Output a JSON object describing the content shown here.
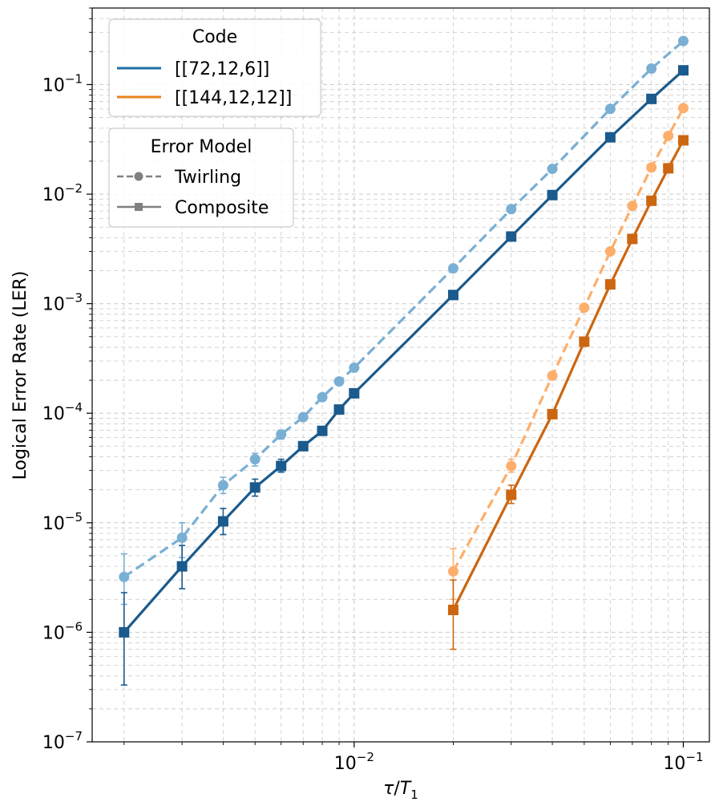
{
  "chart_data": {
    "type": "line",
    "xscale": "log",
    "yscale": "log",
    "xlim": [
      0.0016,
      0.12
    ],
    "ylim": [
      1e-07,
      0.5
    ],
    "xlabel": "τ/T₁",
    "ylabel": "Logical Error Rate (LER)",
    "grid": true,
    "x_ticks": [
      {
        "value": 0.01,
        "base": "10",
        "exp": "−2"
      },
      {
        "value": 0.1,
        "base": "10",
        "exp": "−1"
      }
    ],
    "y_ticks": [
      {
        "value": 1e-07,
        "base": "10",
        "exp": "−7"
      },
      {
        "value": 1e-06,
        "base": "10",
        "exp": "−6"
      },
      {
        "value": 1e-05,
        "base": "10",
        "exp": "−5"
      },
      {
        "value": 0.0001,
        "base": "10",
        "exp": "−4"
      },
      {
        "value": 0.001,
        "base": "10",
        "exp": "−3"
      },
      {
        "value": 0.01,
        "base": "10",
        "exp": "−2"
      },
      {
        "value": 0.1,
        "base": "10",
        "exp": "−1"
      }
    ],
    "legend_code": {
      "title": "Code",
      "entries": [
        {
          "label": "[[72,12,6]]",
          "color": "#1f6fa8"
        },
        {
          "label": "[[144,12,12]]",
          "color": "#e8821e"
        }
      ]
    },
    "legend_model": {
      "title": "Error Model",
      "entries": [
        {
          "label": "Twirling",
          "style": "dashed",
          "marker": "circle",
          "color": "#808080"
        },
        {
          "label": "Composite",
          "style": "solid",
          "marker": "square",
          "color": "#808080"
        }
      ]
    },
    "series": [
      {
        "name": "[[72,12,6]] Twirling",
        "color": "#7aafd4",
        "style": "dashed",
        "marker": "circle",
        "x": [
          0.002,
          0.003,
          0.004,
          0.005,
          0.006,
          0.007,
          0.008,
          0.009,
          0.01,
          0.02,
          0.03,
          0.04,
          0.06,
          0.08,
          0.1
        ],
        "y": [
          3.2e-06,
          7.3e-06,
          2.2e-05,
          3.8e-05,
          6.4e-05,
          9.2e-05,
          0.00014,
          0.000195,
          0.00026,
          0.0021,
          0.0073,
          0.017,
          0.06,
          0.14,
          0.25
        ],
        "err_low": [
          1.8e-06,
          4.8e-06,
          1.85e-05,
          3.3e-05,
          5.8e-05,
          8.6e-05,
          0.000134,
          0.00019,
          0.000255,
          0.00208,
          0.00725,
          0.0169,
          0.0598,
          0.139,
          0.249
        ],
        "err_high": [
          5.2e-06,
          1e-05,
          2.6e-05,
          4.3e-05,
          7e-05,
          9.8e-05,
          0.000146,
          0.0002,
          0.000265,
          0.00212,
          0.00735,
          0.0171,
          0.0602,
          0.141,
          0.251
        ]
      },
      {
        "name": "[[72,12,6]] Composite",
        "color": "#1a5a8c",
        "style": "solid",
        "marker": "square",
        "x": [
          0.002,
          0.003,
          0.004,
          0.005,
          0.006,
          0.007,
          0.008,
          0.009,
          0.01,
          0.02,
          0.03,
          0.04,
          0.06,
          0.08,
          0.1
        ],
        "y": [
          1e-06,
          4e-06,
          1.03e-05,
          2.1e-05,
          3.3e-05,
          5e-05,
          6.9e-05,
          0.000108,
          0.000152,
          0.0012,
          0.0041,
          0.0098,
          0.033,
          0.074,
          0.135
        ],
        "err_low": [
          3.3e-07,
          2.5e-06,
          7.8e-06,
          1.75e-05,
          2.9e-05,
          4.6e-05,
          6.5e-05,
          0.000104,
          0.000148,
          0.00119,
          0.00408,
          0.00975,
          0.0329,
          0.0739,
          0.1349
        ],
        "err_high": [
          2.3e-06,
          6.2e-06,
          1.35e-05,
          2.5e-05,
          3.8e-05,
          5.5e-05,
          7.4e-05,
          0.000112,
          0.000156,
          0.00121,
          0.00412,
          0.00985,
          0.0331,
          0.0741,
          0.1351
        ]
      },
      {
        "name": "[[144,12,12]] Twirling",
        "color": "#fdae6b",
        "style": "dashed",
        "marker": "circle",
        "x": [
          0.02,
          0.03,
          0.04,
          0.05,
          0.06,
          0.07,
          0.08,
          0.09,
          0.1
        ],
        "y": [
          3.6e-06,
          3.3e-05,
          0.00022,
          0.00092,
          0.003,
          0.0078,
          0.0175,
          0.034,
          0.061
        ],
        "err_low": [
          2e-06,
          2.9e-05,
          0.00021,
          0.0009,
          0.00298,
          0.00775,
          0.0174,
          0.0339,
          0.0609
        ],
        "err_high": [
          5.8e-06,
          3.8e-05,
          0.00023,
          0.00094,
          0.00302,
          0.00785,
          0.0176,
          0.0341,
          0.0611
        ]
      },
      {
        "name": "[[144,12,12]] Composite",
        "color": "#cc6611",
        "style": "solid",
        "marker": "square",
        "x": [
          0.02,
          0.03,
          0.04,
          0.05,
          0.06,
          0.07,
          0.08,
          0.09,
          0.1
        ],
        "y": [
          1.6e-06,
          1.8e-05,
          9.8e-05,
          0.00045,
          0.0015,
          0.0039,
          0.0087,
          0.0172,
          0.031
        ],
        "err_low": [
          7e-07,
          1.5e-05,
          9.4e-05,
          0.00044,
          0.00149,
          0.00388,
          0.00868,
          0.01718,
          0.03099
        ],
        "err_high": [
          3e-06,
          2.2e-05,
          0.000102,
          0.00046,
          0.00151,
          0.00392,
          0.00872,
          0.01722,
          0.03101
        ]
      }
    ]
  }
}
